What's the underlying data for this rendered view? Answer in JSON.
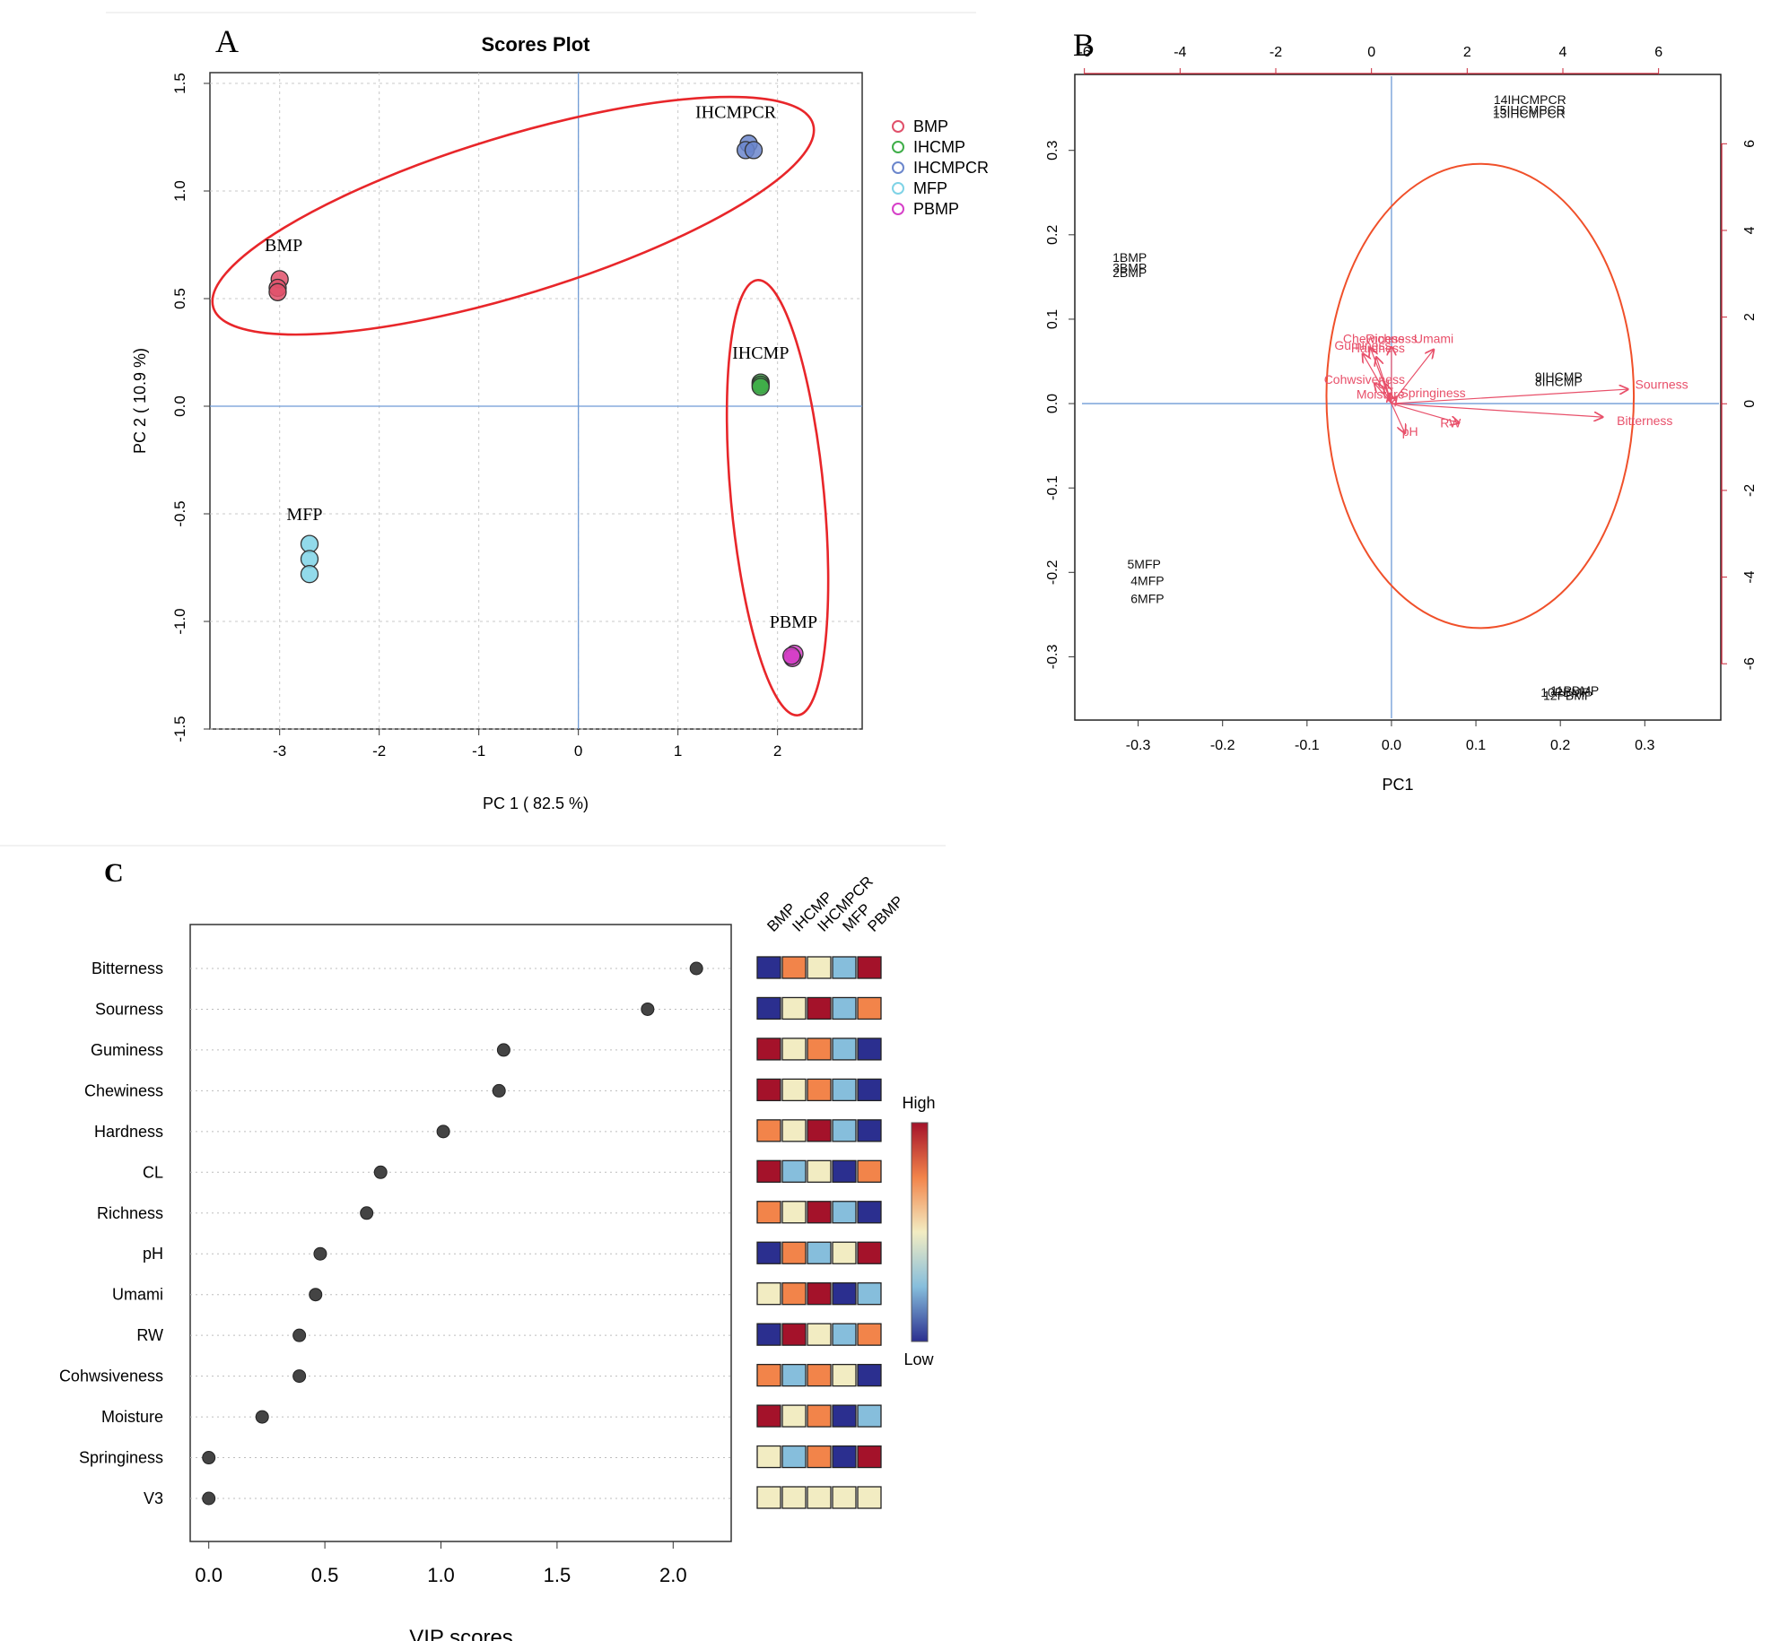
{
  "panel_labels": {
    "a": "A",
    "b": "B",
    "c": "C"
  },
  "colors": {
    "BMP": "#e0506a",
    "IHCMP": "#3fae49",
    "IHCMPCR": "#6b86cc",
    "MFP": "#7fd3e6",
    "PBMP": "#d640c8",
    "ellipse": "#e8262a",
    "biplot_circle": "#f0502a",
    "arrow": "#e8506a",
    "axis_line": "#6f9bd6",
    "heat_low": "#2b2f8f",
    "heat_midlow": "#86bedc",
    "heat_mid": "#f2ecc2",
    "heat_midhigh": "#f2844a",
    "heat_high": "#a4122a"
  },
  "chart_data": [
    {
      "type": "scatter",
      "panel": "A",
      "title": "Scores Plot",
      "xlabel": "PC 1 ( 82.5 %)",
      "ylabel": "PC 2 ( 10.9 %)",
      "xlim": [
        -3.7,
        2.85
      ],
      "ylim": [
        -1.5,
        1.55
      ],
      "xticks": [
        "-3",
        "-2",
        "-1",
        "0",
        "1",
        "2"
      ],
      "yticks": [
        "-1.5",
        "-1.0",
        "-0.5",
        "0.0",
        "0.5",
        "1.0",
        "1.5"
      ],
      "grid": true,
      "legend_position": "right",
      "legend": [
        "BMP",
        "IHCMP",
        "IHCMPCR",
        "MFP",
        "PBMP"
      ],
      "series": [
        {
          "name": "BMP",
          "points": [
            [
              -3.0,
              0.59
            ],
            [
              -3.02,
              0.55
            ],
            [
              -3.02,
              0.53
            ]
          ]
        },
        {
          "name": "IHCMP",
          "points": [
            [
              1.83,
              0.11
            ],
            [
              1.83,
              0.1
            ],
            [
              1.83,
              0.09
            ]
          ]
        },
        {
          "name": "IHCMPCR",
          "points": [
            [
              1.71,
              1.22
            ],
            [
              1.68,
              1.19
            ],
            [
              1.76,
              1.19
            ]
          ]
        },
        {
          "name": "MFP",
          "points": [
            [
              -2.7,
              -0.64
            ],
            [
              -2.7,
              -0.71
            ],
            [
              -2.7,
              -0.78
            ]
          ]
        },
        {
          "name": "PBMP",
          "points": [
            [
              2.17,
              -1.15
            ],
            [
              2.15,
              -1.17
            ],
            [
              2.14,
              -1.16
            ]
          ]
        }
      ],
      "point_labels": [
        {
          "text": "BMP",
          "x": -2.96,
          "y": 0.72
        },
        {
          "text": "IHCMPCR",
          "x": 1.58,
          "y": 1.34
        },
        {
          "text": "IHCMP",
          "x": 1.83,
          "y": 0.22
        },
        {
          "text": "MFP",
          "x": -2.75,
          "y": -0.53
        },
        {
          "text": "PBMP",
          "x": 2.16,
          "y": -1.03
        }
      ]
    },
    {
      "type": "scatter",
      "panel": "B",
      "title": "",
      "xlabel": "PC1",
      "ylabel": "",
      "xlim": [
        -0.375,
        0.39
      ],
      "ylim": [
        -0.375,
        0.39
      ],
      "xticks": [
        "-0.3",
        "-0.2",
        "-0.1",
        "0.0",
        "0.1",
        "0.2",
        "0.3"
      ],
      "yticks": [
        "-0.3",
        "-0.2",
        "-0.1",
        "0.0",
        "0.1",
        "0.2",
        "0.3"
      ],
      "top_axis": {
        "lim": [
          -6.2,
          7.3
        ],
        "ticks": [
          "-6",
          "-4",
          "-2",
          "0",
          "2",
          "4",
          "6"
        ]
      },
      "right_axis": {
        "lim": [
          -7.3,
          7.6
        ],
        "ticks": [
          "-6",
          "-4",
          "-2",
          "0",
          "2",
          "4",
          "6"
        ]
      },
      "grid": false,
      "samples": [
        {
          "text": "1BMP",
          "x": -0.31,
          "y": 0.173
        },
        {
          "text": "3BMP",
          "x": -0.31,
          "y": 0.161
        },
        {
          "text": "2BMP",
          "x": -0.31,
          "y": 0.155
        },
        {
          "text": "5MFP",
          "x": -0.293,
          "y": -0.19
        },
        {
          "text": "4MFP",
          "x": -0.289,
          "y": -0.21
        },
        {
          "text": "6MFP",
          "x": -0.289,
          "y": -0.231
        },
        {
          "text": "9IHCMP",
          "x": 0.198,
          "y": 0.032
        },
        {
          "text": "8IHCMP",
          "x": 0.198,
          "y": 0.026
        },
        {
          "text": "14IHCMPCR",
          "x": 0.164,
          "y": 0.36
        },
        {
          "text": "15IHCMPCR",
          "x": 0.163,
          "y": 0.348
        },
        {
          "text": "13IHCMPCR",
          "x": 0.163,
          "y": 0.344
        },
        {
          "text": "11PBMP",
          "x": 0.217,
          "y": -0.34
        },
        {
          "text": "10PBMP",
          "x": 0.206,
          "y": -0.342
        },
        {
          "text": "12PBMP",
          "x": 0.209,
          "y": -0.346
        }
      ],
      "loadings": [
        {
          "name": "Sourness",
          "x": 0.28,
          "y": 0.017,
          "lx": 0.32,
          "ly": 0.023
        },
        {
          "name": "Bitterness",
          "x": 0.25,
          "y": -0.016,
          "lx": 0.3,
          "ly": -0.02
        },
        {
          "name": "RW",
          "x": 0.08,
          "y": -0.023,
          "lx": 0.07,
          "ly": -0.023
        },
        {
          "name": "pH",
          "x": 0.016,
          "y": -0.035,
          "lx": 0.022,
          "ly": -0.033
        },
        {
          "name": "Umami",
          "x": 0.05,
          "y": 0.064,
          "lx": 0.05,
          "ly": 0.077
        },
        {
          "name": "Richness",
          "x": 0.0,
          "y": 0.067,
          "lx": 0.0,
          "ly": 0.077
        },
        {
          "name": "Chewiness",
          "x": -0.025,
          "y": 0.066,
          "lx": -0.021,
          "ly": 0.077
        },
        {
          "name": "Guminess",
          "x": -0.034,
          "y": 0.059,
          "lx": -0.034,
          "ly": 0.069
        },
        {
          "name": "Hardness",
          "x": -0.018,
          "y": 0.055,
          "lx": -0.016,
          "ly": 0.066
        },
        {
          "name": "Cohwsiveness",
          "x": -0.02,
          "y": 0.024,
          "lx": -0.032,
          "ly": 0.029
        },
        {
          "name": "Springiness",
          "x": 0.006,
          "y": 0.008,
          "lx": 0.049,
          "ly": 0.013
        },
        {
          "name": "Moisture",
          "x": -0.002,
          "y": 0.012,
          "lx": -0.013,
          "ly": 0.011
        },
        {
          "name": "CL",
          "x": -0.007,
          "y": 0.023,
          "lx": -0.007,
          "ly": 0.023
        }
      ],
      "circle": {
        "center": [
          0.105,
          0.009
        ],
        "radius_x": 0.182,
        "radius_y": 0.275
      }
    },
    {
      "type": "scatter",
      "panel": "C",
      "xlabel": "VIP scores",
      "xlim": [
        -0.08,
        2.25
      ],
      "xticks": [
        "0.0",
        "0.5",
        "1.0",
        "1.5",
        "2.0"
      ],
      "categories": [
        "Bitterness",
        "Sourness",
        "Guminess",
        "Chewiness",
        "Hardness",
        "CL",
        "Richness",
        "pH",
        "Umami",
        "RW",
        "Cohwsiveness",
        "Moisture",
        "Springiness",
        "V3"
      ],
      "values": [
        2.1,
        1.89,
        1.27,
        1.25,
        1.01,
        0.74,
        0.68,
        0.48,
        0.46,
        0.39,
        0.39,
        0.23,
        0.0,
        0.0
      ],
      "heatmap_columns": [
        "BMP",
        "IHCMP",
        "IHCMPCR",
        "MFP",
        "PBMP"
      ],
      "heatmap_levels": [
        [
          0,
          3,
          2,
          1,
          4
        ],
        [
          0,
          2,
          4,
          1,
          3
        ],
        [
          4,
          2,
          3,
          1,
          0
        ],
        [
          4,
          2,
          3,
          1,
          0
        ],
        [
          3,
          2,
          4,
          1,
          0
        ],
        [
          4,
          1,
          2,
          0,
          3
        ],
        [
          3,
          2,
          4,
          1,
          0
        ],
        [
          0,
          3,
          1,
          2,
          4
        ],
        [
          2,
          3,
          4,
          0,
          1
        ],
        [
          0,
          4,
          2,
          1,
          3
        ],
        [
          3,
          1,
          3,
          2,
          0
        ],
        [
          4,
          2,
          3,
          0,
          1
        ],
        [
          2,
          1,
          3,
          0,
          4
        ],
        [
          2,
          2,
          2,
          2,
          2
        ]
      ],
      "colorbar": {
        "high_label": "High",
        "low_label": "Low"
      }
    }
  ]
}
